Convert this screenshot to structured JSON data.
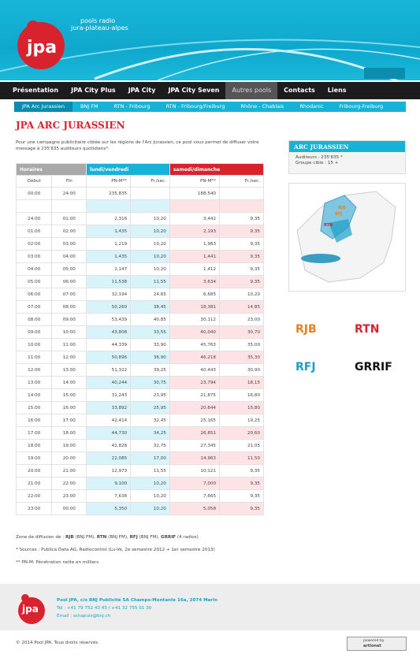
{
  "header": {
    "logo": "jpa",
    "tagline": [
      "pools radio",
      "jura-plateau-alpes"
    ]
  },
  "nav": [
    "Présentation",
    "JPA City Plus",
    "JPA City",
    "JPA City Seven",
    "Autres pools",
    "Contacts",
    "Liens"
  ],
  "nav_active": 4,
  "subnav": [
    "JPA Arc Jurassien",
    "BNJ FM",
    "RTN - Fribourg",
    "RTN - Fribourg/Freiburg",
    "Rhône - Chablais",
    "Rhodanic",
    "Fribourg-Freiburg"
  ],
  "subnav_active": 0,
  "title": "JPA ARC JURASSIEN",
  "intro": "Pour une campagne publicitaire ciblée sur les régions de l'Arc Jurassien, ce pool vous permet de diffuser votre message à 235'835 auditeurs quotidiens*.",
  "table": {
    "groups": [
      "Horaires",
      "lundi/vendredi",
      "samedi/dimanche"
    ],
    "columns": [
      "Début",
      "Fin",
      "PN-M**",
      "Fr./sec.",
      "PN-M**",
      "Fr./sec."
    ],
    "rows": [
      [
        "00:00",
        "24:00",
        "235,835",
        null,
        "188,540",
        null
      ],
      [
        null,
        null,
        null,
        null,
        null,
        null
      ],
      [
        "24:00",
        "01:00",
        "2,316",
        "10,20",
        "3,442",
        "9,35"
      ],
      [
        "01:00",
        "02:00",
        "1,435",
        "10,20",
        "2,193",
        "9,35"
      ],
      [
        "02:00",
        "03:00",
        "1,219",
        "10,20",
        "1,983",
        "9,35"
      ],
      [
        "03:00",
        "04:00",
        "1,435",
        "10,20",
        "1,441",
        "9,35"
      ],
      [
        "04:00",
        "05:00",
        "2,147",
        "10,20",
        "1,412",
        "9,35"
      ],
      [
        "05:00",
        "06:00",
        "11,538",
        "11,55",
        "3,634",
        "9,35"
      ],
      [
        "06:00",
        "07:00",
        "32,194",
        "24,65",
        "6,685",
        "10,20"
      ],
      [
        "07:00",
        "08:00",
        "50,260",
        "38,45",
        "18,381",
        "14,85"
      ],
      [
        "08:00",
        "09:00",
        "53,439",
        "40,85",
        "30,112",
        "23,00"
      ],
      [
        "09:00",
        "10:00",
        "43,808",
        "33,55",
        "40,040",
        "30,70"
      ],
      [
        "10:00",
        "11:00",
        "44,339",
        "33,90",
        "45,763",
        "35,00"
      ],
      [
        "11:00",
        "12:00",
        "50,896",
        "38,90",
        "46,218",
        "35,30"
      ],
      [
        "12:00",
        "13:00",
        "51,322",
        "39,25",
        "40,443",
        "30,90"
      ],
      [
        "13:00",
        "14:00",
        "40,244",
        "30,75",
        "23,794",
        "18,15"
      ],
      [
        "14:00",
        "15:00",
        "31,243",
        "23,95",
        "21,875",
        "16,80"
      ],
      [
        "15:00",
        "16:00",
        "33,892",
        "25,95",
        "20,644",
        "15,80"
      ],
      [
        "16:00",
        "17:00",
        "42,414",
        "32,45",
        "25,165",
        "19,25"
      ],
      [
        "17:00",
        "18:00",
        "44,730",
        "34,25",
        "26,851",
        "20,60"
      ],
      [
        "18:00",
        "19:00",
        "42,828",
        "32,75",
        "27,345",
        "21,05"
      ],
      [
        "19:00",
        "20:00",
        "22,085",
        "17,00",
        "14,963",
        "11,50"
      ],
      [
        "20:00",
        "21:00",
        "12,973",
        "11,55",
        "10,121",
        "9,35"
      ],
      [
        "21:00",
        "22:00",
        "9,100",
        "10,20",
        "7,000",
        "9,35"
      ],
      [
        "22:00",
        "23:00",
        "7,638",
        "10,20",
        "7,665",
        "9,35"
      ],
      [
        "23:00",
        "00:00",
        "5,350",
        "10,20",
        "5,058",
        "9,35"
      ]
    ]
  },
  "notes": {
    "zone": {
      "prefix": "Zone de diffusion de :",
      "items": [
        {
          "name": "RJB",
          "note": "(BNJ FM),"
        },
        {
          "name": "RTN",
          "note": "(BNJ FM),"
        },
        {
          "name": "RFJ",
          "note": "(BNJ FM),"
        },
        {
          "name": "GRRIF",
          "note": "(4 radios)"
        }
      ]
    },
    "sources": "* Sources : Publica Data AG, Radiocontrol (Lu-Ve, 2e semestre 2012 + 1er semestre 2013)",
    "pnm": "** PN-M: Pénétration nette en milliers"
  },
  "sidebar": {
    "title": "ARC JURASSIEN",
    "lines": [
      "Auditeurs : 235'835 *",
      "Groupe cible : 15 +"
    ],
    "map_labels": [
      "RJB",
      "RFJ",
      "RTN"
    ],
    "logos": [
      "RJB",
      "RTN",
      "RFJ",
      "GRRIF"
    ]
  },
  "footer": {
    "logo": "jpa",
    "address": "Pool JPA, c/o BNJ Publicité SA Champs-Montants 16a, 2074 Marin",
    "phone": "Tel : +41 79 752 43 43 / +41 32 755 01 30",
    "email": "Email : schapuis@bnj.ch",
    "copyright": "© 2014 Pool JPA. Tous droits réservés",
    "powered": [
      "powered by",
      "artionet"
    ]
  }
}
